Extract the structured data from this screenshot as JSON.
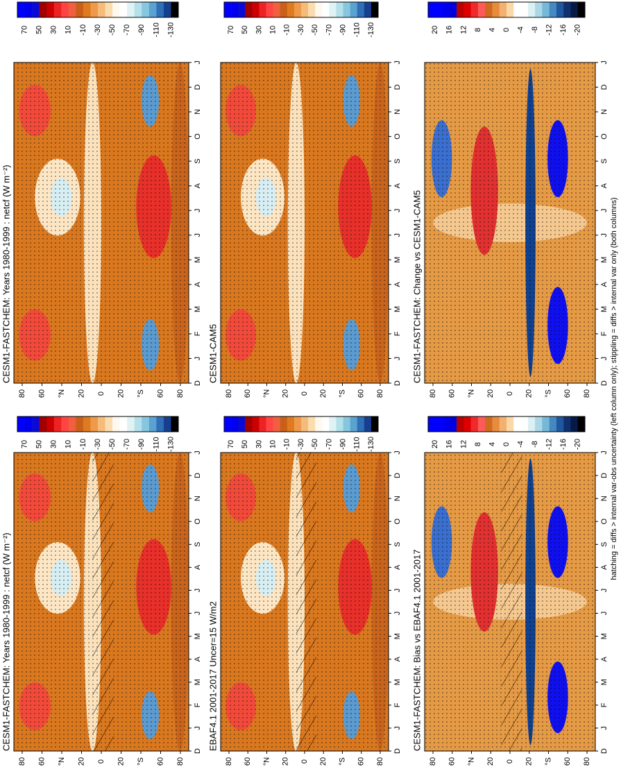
{
  "scales": [
    {
      "labels": [
        "70",
        "50",
        "30",
        "10",
        "-10",
        "-30",
        "-50",
        "-70",
        "-90",
        "-110",
        "-130"
      ],
      "colors": [
        "#0000ff",
        "#0000ee",
        "#0a0ad8",
        "#a00000",
        "#cc0000",
        "#ee2222",
        "#ff4444",
        "#f06040",
        "#c8601a",
        "#e07a20",
        "#ee9a4a",
        "#f5bb7a",
        "#fbdcae",
        "#fff8ee",
        "#ffffff",
        "#dff3f4",
        "#b4e0ea",
        "#86c6df",
        "#5aa2d0",
        "#2f6fb8",
        "#16408f",
        "#000000"
      ]
    },
    {
      "labels": [
        "20",
        "16",
        "12",
        "8",
        "4",
        "0",
        "-4",
        "-8",
        "-12",
        "-16",
        "-20"
      ],
      "colors": [
        "#0000ff",
        "#0000ff",
        "#0000ee",
        "#0000dd",
        "#bb0000",
        "#dd0000",
        "#f02a2a",
        "#ff5a5a",
        "#cf6a1e",
        "#e68c3c",
        "#f3b070",
        "#fbd8a8",
        "#ffffff",
        "#ffffff",
        "#daf0f3",
        "#aad8e6",
        "#76b8d8",
        "#4688c0",
        "#2058a0",
        "#103070",
        "#061a48",
        "#000000"
      ]
    }
  ],
  "months": [
    "D",
    "J",
    "F",
    "M",
    "A",
    "M",
    "J",
    "J",
    "A",
    "S",
    "O",
    "N",
    "D",
    "J"
  ],
  "latitudes": [
    "80",
    "60",
    "°N",
    "20",
    "0",
    "20",
    "°S",
    "60",
    "80"
  ],
  "panels": [
    {
      "title": "CESM1-FASTCHEM: Years 1980-1999 : netcf (W m⁻²)",
      "scale": 0,
      "hatching": false
    },
    {
      "title": "CESM1-CAM5",
      "scale": 0,
      "hatching": false
    },
    {
      "title": "CESM1-FASTCHEM: Change vs CESM1-CAM5",
      "scale": 1,
      "hatching": false
    },
    {
      "title": "CESM1-FASTCHEM: Years 1980-1999 : netcf (W m⁻²)",
      "scale": 0,
      "hatching": true
    },
    {
      "title": "EBAF4.1 2001-2017 Uncer=15 W/m2",
      "scale": 0,
      "hatching": true
    },
    {
      "title": "CESM1-FASTCHEM: Bias vs EBAF4.1 2001-2017",
      "scale": 1,
      "hatching": true
    }
  ],
  "footer": "hatching = diffs > internal var-obs uncertainty (left column only); stippling = diffs > internal var only (both columns)"
}
